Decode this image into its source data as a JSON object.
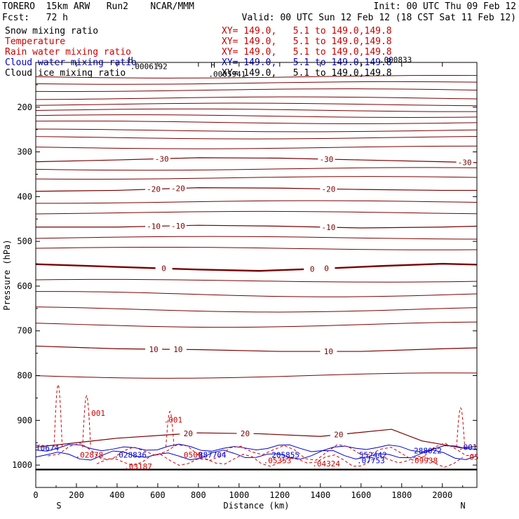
{
  "header": {
    "model": "TORERO  15km ARW   Run2    NCAR/MMM",
    "init": "Init: 00 UTC Thu 09 Feb 12",
    "fcst": "Fcst:   72 h",
    "valid": "Valid: 00 UTC Sun 12 Feb 12 (18 CST Sat 11 Feb 12)"
  },
  "fields": [
    {
      "name": "Snow mixing ratio",
      "xy": "XY= 149.0,   5.1 to 149.0,149.8",
      "color": "#000000",
      "xycolor": "#cc0000"
    },
    {
      "name": "Temperature",
      "xy": "XY= 149.0,   5.1 to 149.0,149.8",
      "color": "#cc0000",
      "xycolor": "#cc0000"
    },
    {
      "name": "Rain water mixing ratio",
      "xy": "XY= 149.0,   5.1 to 149.0,149.8",
      "color": "#cc0000",
      "xycolor": "#cc0000"
    },
    {
      "name": "Cloud water mixing ratio",
      "xy": "XY= 149.0,   5.1 to 149.0,149.8",
      "color": "#0000cc",
      "xycolor": "#0000cc"
    },
    {
      "name": "Cloud ice mixing ratio",
      "xy": "XY= 149.0,   5.1 to 149.0,149.8",
      "color": "#000000",
      "xycolor": "#000000"
    }
  ],
  "chart_data": {
    "type": "line",
    "xlabel": "Distance (km)",
    "ylabel": "Pressure (hPa)",
    "xlim": [
      0,
      2170
    ],
    "ylim": [
      1050,
      100
    ],
    "x_ticks": [
      0,
      200,
      400,
      600,
      800,
      1000,
      1200,
      1400,
      1600,
      1800,
      2000
    ],
    "y_ticks": [
      200,
      300,
      400,
      500,
      600,
      700,
      800,
      900,
      1000
    ],
    "orientation": {
      "left": "S",
      "right": "N"
    },
    "temperature_contours": [
      {
        "level": -30,
        "labels": [
          {
            "x": 620,
            "text": "-30"
          },
          {
            "x": 1430,
            "text": "-30"
          },
          {
            "x": 2110,
            "text": "-30"
          }
        ],
        "points": [
          [
            0,
            322
          ],
          [
            400,
            318
          ],
          [
            800,
            313
          ],
          [
            1200,
            314
          ],
          [
            1600,
            318
          ],
          [
            2000,
            322
          ],
          [
            2170,
            324
          ]
        ]
      },
      {
        "level": -20,
        "labels": [
          {
            "x": 580,
            "text": "-20"
          },
          {
            "x": 700,
            "text": "-20"
          },
          {
            "x": 1440,
            "text": "-20"
          }
        ],
        "points": [
          [
            0,
            388
          ],
          [
            400,
            386
          ],
          [
            800,
            380
          ],
          [
            1200,
            381
          ],
          [
            1600,
            384
          ],
          [
            2000,
            386
          ],
          [
            2170,
            386
          ]
        ]
      },
      {
        "level": -10,
        "labels": [
          {
            "x": 580,
            "text": "-10"
          },
          {
            "x": 700,
            "text": "-10"
          },
          {
            "x": 1440,
            "text": "-10"
          }
        ],
        "points": [
          [
            0,
            468
          ],
          [
            400,
            468
          ],
          [
            800,
            464
          ],
          [
            1200,
            466
          ],
          [
            1600,
            470
          ],
          [
            2000,
            468
          ],
          [
            2170,
            466
          ]
        ]
      },
      {
        "level": 0,
        "labels": [
          {
            "x": 630,
            "text": "0"
          },
          {
            "x": 1360,
            "text": "0"
          },
          {
            "x": 1430,
            "text": "0"
          }
        ],
        "points": [
          [
            0,
            551
          ],
          [
            400,
            557
          ],
          [
            800,
            563
          ],
          [
            1100,
            566
          ],
          [
            1400,
            561
          ],
          [
            1700,
            555
          ],
          [
            2000,
            550
          ],
          [
            2170,
            552
          ]
        ]
      },
      {
        "level": 10,
        "labels": [
          {
            "x": 580,
            "text": "10"
          },
          {
            "x": 700,
            "text": "10"
          },
          {
            "x": 1440,
            "text": "10"
          }
        ],
        "points": [
          [
            0,
            734
          ],
          [
            400,
            740
          ],
          [
            800,
            742
          ],
          [
            1200,
            746
          ],
          [
            1600,
            746
          ],
          [
            2000,
            740
          ],
          [
            2170,
            738
          ]
        ]
      },
      {
        "level": 20,
        "labels": [
          {
            "x": 750,
            "text": "20"
          },
          {
            "x": 1030,
            "text": "20"
          },
          {
            "x": 1490,
            "text": "20"
          }
        ],
        "points": [
          [
            0,
            960
          ],
          [
            400,
            940
          ],
          [
            800,
            928
          ],
          [
            1100,
            930
          ],
          [
            1400,
            936
          ],
          [
            1750,
            920
          ],
          [
            1900,
            946
          ],
          [
            2100,
            962
          ],
          [
            2170,
            958
          ]
        ]
      }
    ],
    "background_contours_pressure": [
      132,
      146,
      162,
      180,
      194,
      207,
      220,
      234,
      252,
      268,
      290,
      338,
      358,
      412,
      436,
      492,
      516,
      588,
      618,
      652,
      686,
      800
    ],
    "markers": [
      {
        "x": 455,
        "p": 100,
        "text": "H",
        "color": "#000000"
      },
      {
        "x": 465,
        "p": 115,
        "text": ".0006192",
        "color": "#000000"
      },
      {
        "x": 860,
        "p": 112,
        "text": "H",
        "color": "#000000"
      },
      {
        "x": 850,
        "p": 132,
        "text": ".0005941",
        "color": "#000000"
      },
      {
        "x": 1690,
        "p": 100,
        "text": ".000833",
        "color": "#000000"
      },
      {
        "x": 250,
        "p": 890,
        "text": ".001",
        "color": "#cc0000"
      },
      {
        "x": 630,
        "p": 905,
        "text": ".001",
        "color": "#cc0000"
      },
      {
        "x": 0,
        "p": 968,
        "text": "T0674",
        "color": "#0000cc"
      },
      {
        "x": 195,
        "p": 983,
        "text": ".02878",
        "color": "#cc0000"
      },
      {
        "x": 385,
        "p": 983,
        "text": ".028836",
        "color": "#0000cc"
      },
      {
        "x": 705,
        "p": 983,
        "text": ".0509",
        "color": "#cc0000"
      },
      {
        "x": 800,
        "p": 983,
        "text": "887704",
        "color": "#0000cc"
      },
      {
        "x": 1160,
        "p": 983,
        "text": "205855",
        "color": "#0000cc"
      },
      {
        "x": 1120,
        "p": 996,
        "text": ".05353",
        "color": "#cc0000"
      },
      {
        "x": 1360,
        "p": 1003,
        "text": ".04324",
        "color": "#cc0000"
      },
      {
        "x": 1590,
        "p": 983,
        "text": "552442",
        "color": "#0000cc"
      },
      {
        "x": 1580,
        "p": 996,
        "text": ".07753",
        "color": "#0000cc"
      },
      {
        "x": 1860,
        "p": 974,
        "text": "288022",
        "color": "#0000cc"
      },
      {
        "x": 1840,
        "p": 996,
        "text": ".09938",
        "color": "#cc0000"
      },
      {
        "x": 2080,
        "p": 966,
        "text": ".001",
        "color": "#0000cc"
      },
      {
        "x": 2110,
        "p": 988,
        "text": ".05",
        "color": "#cc0000"
      },
      {
        "x": 435,
        "p": 1009,
        "text": ".03187",
        "color": "#cc0000"
      }
    ]
  }
}
